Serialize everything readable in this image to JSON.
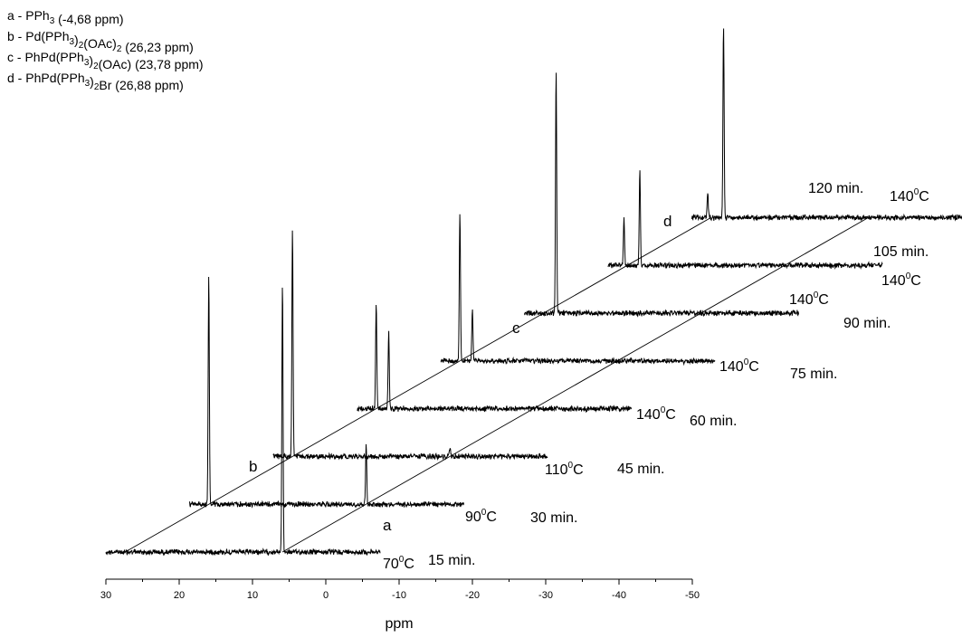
{
  "chart_data": {
    "type": "line",
    "title": "",
    "xlabel": "ppm",
    "ylabel": "",
    "xlim": [
      30,
      -50
    ],
    "x_ticks": [
      30,
      20,
      10,
      0,
      -10,
      -20,
      -30,
      -40,
      -50
    ],
    "x_tick_labels": [
      "30",
      "20",
      "10",
      "0",
      "-10",
      "-20",
      "-30",
      "-40",
      "-50"
    ],
    "grid": false,
    "legend": [
      {
        "letter": "a",
        "pre": "a - PPh",
        "s1": "3",
        "mid": " (-4,68 ppm)",
        "s2": "",
        "post": ""
      },
      {
        "letter": "b",
        "pre": "b - Pd(PPh",
        "s1": "3",
        "mid": ")",
        "s2": "2",
        "post": "(OAc)",
        "s3": "2",
        "tail": " (26,23 ppm)"
      },
      {
        "letter": "c",
        "pre": "c - PhPd(PPh",
        "s1": "3",
        "mid": ")",
        "s2": "2",
        "post": "(OAc) (23,78 ppm)"
      },
      {
        "letter": "d",
        "pre": "d - PhPd(PPh",
        "s1": "3",
        "mid": ")",
        "s2": "2",
        "post": "Br (26,88 ppm)"
      }
    ],
    "legend_placement": "top-left",
    "series": [
      {
        "time": "15 min.",
        "temperature": "70",
        "peaks": [
          {
            "x": -4.68,
            "height": 1.0
          },
          {
            "x": 26.23,
            "height": 0.0
          }
        ]
      },
      {
        "time": "30 min.",
        "temperature": "90",
        "peaks": [
          {
            "x": 26.23,
            "height": 0.84
          },
          {
            "x": -4.68,
            "height": 0.22
          }
        ]
      },
      {
        "time": "45 min.",
        "temperature": "110",
        "peaks": [
          {
            "x": 26.23,
            "height": 0.84
          },
          {
            "x": -4.68,
            "height": 0.03
          }
        ]
      },
      {
        "time": "60 min.",
        "temperature": "140",
        "peaks": [
          {
            "x": 26.23,
            "height": 0.39
          },
          {
            "x": 23.78,
            "height": 0.28
          },
          {
            "x": -4.68,
            "height": 0.0
          }
        ]
      },
      {
        "time": "75 min.",
        "temperature": "140",
        "peaks": [
          {
            "x": 26.23,
            "height": 0.55
          },
          {
            "x": 23.78,
            "height": 0.19
          }
        ]
      },
      {
        "time": "90 min.",
        "temperature": "140",
        "peaks": [
          {
            "x": 23.78,
            "height": 0.9
          }
        ]
      },
      {
        "time": "105 min.",
        "temperature": "140",
        "peaks": [
          {
            "x": 23.78,
            "height": 0.35
          },
          {
            "x": 26.88,
            "height": 0.17
          }
        ]
      },
      {
        "time": "120 min.",
        "temperature": "140",
        "peaks": [
          {
            "x": 23.78,
            "height": 0.71
          },
          {
            "x": 26.88,
            "height": 0.09
          }
        ]
      }
    ],
    "series_labels": [
      "a",
      "b",
      "c",
      "d"
    ]
  }
}
